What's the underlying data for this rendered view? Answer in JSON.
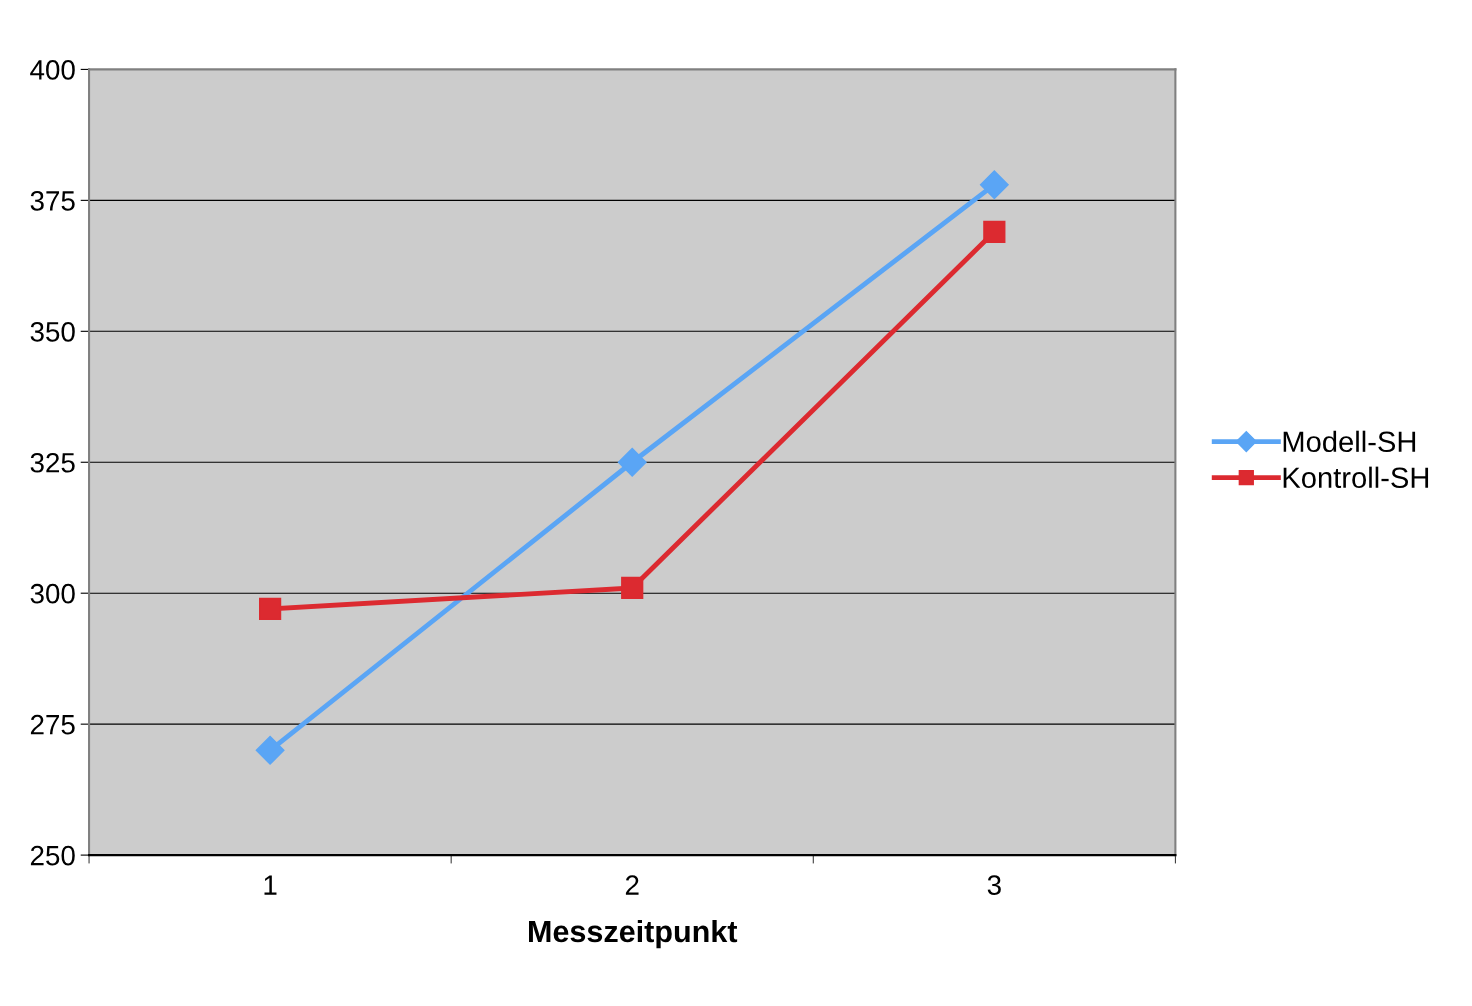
{
  "chart_data": {
    "type": "line",
    "xlabel": "Messzeitpunkt",
    "categories": [
      "1",
      "2",
      "3"
    ],
    "series": [
      {
        "name": "Modell-SH",
        "color": "#5aa5f5",
        "values": [
          270,
          325,
          378
        ],
        "marker": "diamond"
      },
      {
        "name": "Kontroll-SH",
        "color": "#dc2a30",
        "values": [
          297,
          301,
          369
        ],
        "marker": "square"
      }
    ],
    "ylim": [
      250,
      400
    ],
    "yticks": [
      250,
      275,
      300,
      325,
      350,
      375,
      400
    ],
    "grid": "y",
    "legend": "right",
    "line_style": "solid"
  }
}
